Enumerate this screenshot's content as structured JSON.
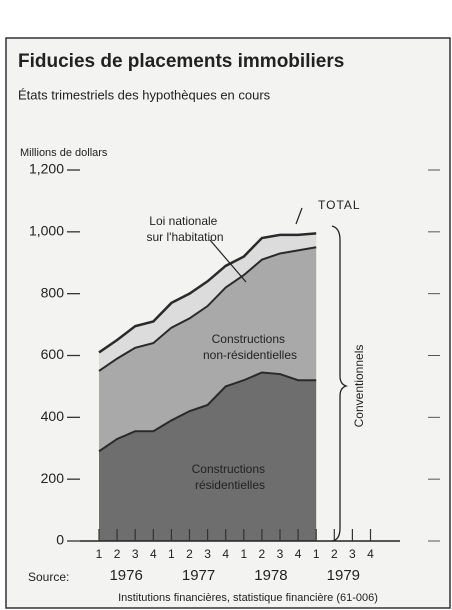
{
  "chart_data": {
    "type": "stacked_area",
    "title": "Fiducies de placements immobiliers",
    "subtitle": "États trimestriels des hypothèques en cours",
    "y_label": "Millions de dollars",
    "categories": [
      "1",
      "2",
      "3",
      "4",
      "1",
      "2",
      "3",
      "4",
      "1",
      "2",
      "3",
      "4",
      "1",
      "2",
      "3",
      "4"
    ],
    "years": [
      "1976",
      "1977",
      "1978",
      "1979"
    ],
    "series": [
      {
        "name": "Constructions résidentielles",
        "color": "#6e6e6e",
        "values": [
          290,
          330,
          355,
          355,
          390,
          420,
          440,
          500,
          520,
          545,
          540,
          520,
          520,
          null,
          null,
          null
        ]
      },
      {
        "name": "Constructions non-résidentielles",
        "color": "#a9a9a9",
        "values": [
          260,
          260,
          270,
          285,
          300,
          300,
          320,
          320,
          340,
          365,
          390,
          420,
          430,
          null,
          null,
          null
        ]
      },
      {
        "name": "Loi nationale sur l'habitation",
        "color": "#dcdcdc",
        "values": [
          60,
          60,
          70,
          70,
          80,
          80,
          80,
          70,
          60,
          70,
          60,
          50,
          45,
          null,
          null,
          null
        ]
      }
    ],
    "total_label": "TOTAL",
    "bracket_label": "Conventionnels",
    "source_label": "Source:",
    "source": "Institutions financières, statistique financière (61-006)",
    "ylim": [
      0,
      1200
    ],
    "yticks": [
      0,
      200,
      400,
      600,
      800,
      {
        "value": 1000,
        "label": "1,000"
      },
      {
        "value": 1200,
        "label": "1,200"
      }
    ]
  }
}
